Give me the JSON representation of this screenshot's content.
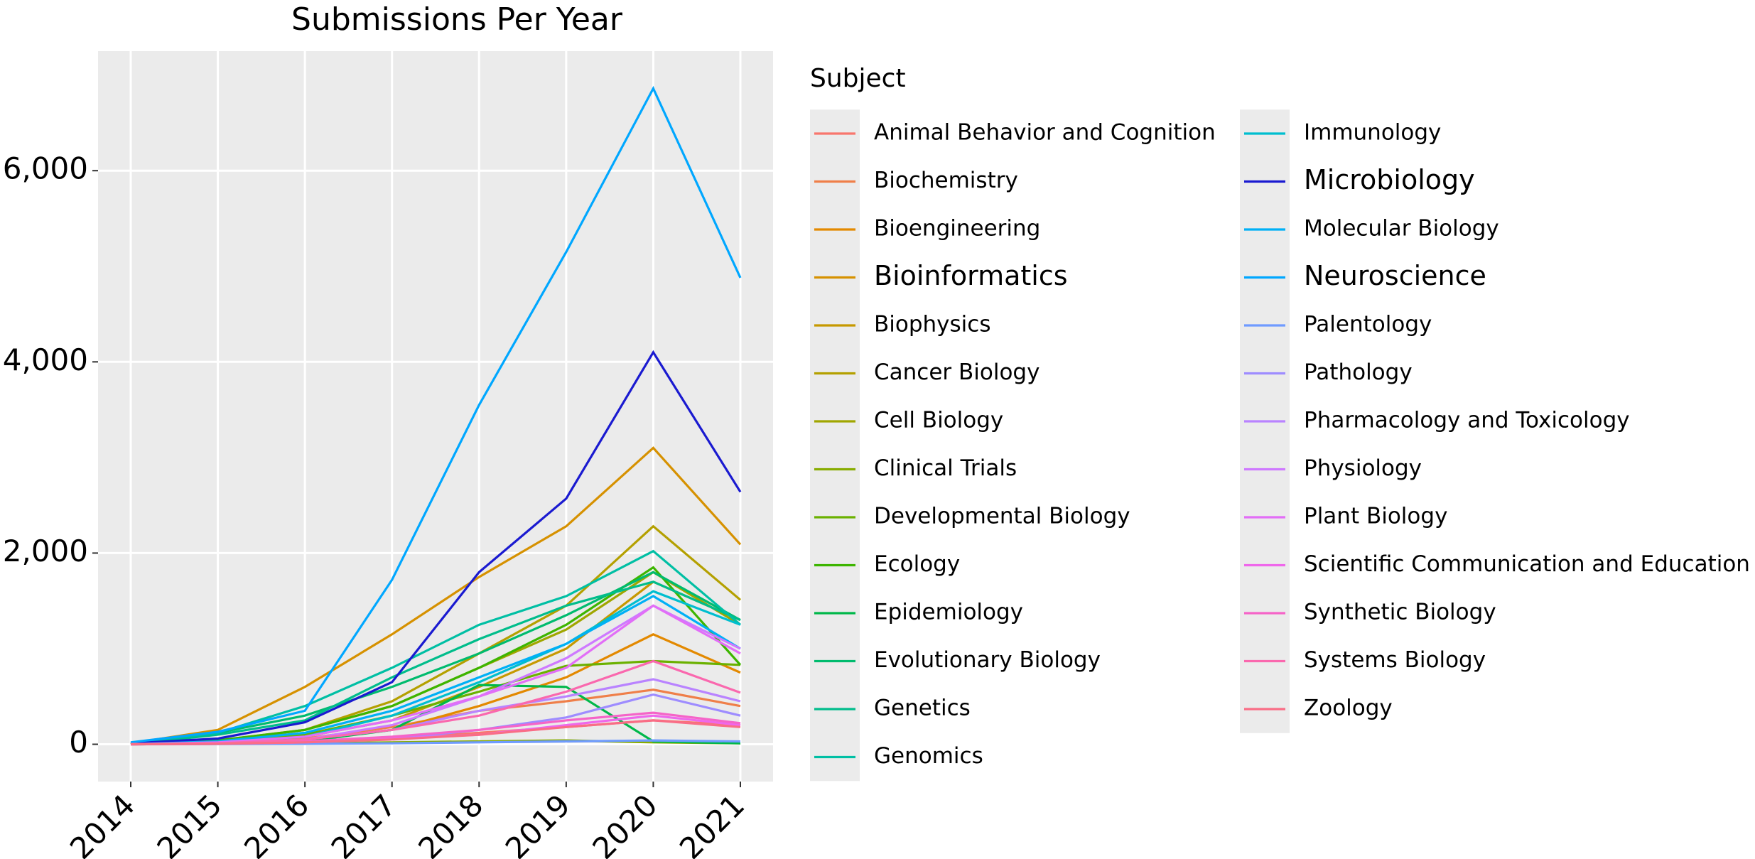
{
  "chart_data": {
    "type": "line",
    "title": "Submissions Per Year",
    "legend_title": "Subject",
    "categories": [
      "2014",
      "2015",
      "2016",
      "2017",
      "2018",
      "2019",
      "2020",
      "2021"
    ],
    "ylim": [
      -390,
      7250
    ],
    "yticks": [
      0,
      {
        "value": 2000,
        "label": "2,000"
      },
      {
        "value": 4000,
        "label": "4,000"
      },
      {
        "value": 6000,
        "label": "6,000"
      }
    ],
    "grid": true,
    "legend_position": "right",
    "series": [
      {
        "name": "Animal Behavior and Cognition",
        "color": "#F8766D",
        "values": [
          0,
          10,
          30,
          60,
          120,
          180,
          250,
          200
        ]
      },
      {
        "name": "Biochemistry",
        "color": "#EF7F49",
        "values": [
          0,
          20,
          60,
          180,
          350,
          450,
          570,
          400
        ]
      },
      {
        "name": "Bioengineering",
        "color": "#E38900",
        "values": [
          0,
          15,
          50,
          150,
          400,
          700,
          1150,
          750
        ]
      },
      {
        "name": "Bioinformatics",
        "color": "#D69100",
        "highlight": true,
        "values": [
          10,
          150,
          600,
          1150,
          1750,
          2280,
          3100,
          2090
        ]
      },
      {
        "name": "Biophysics",
        "color": "#C69900",
        "values": [
          0,
          20,
          80,
          250,
          600,
          1000,
          1700,
          1300
        ]
      },
      {
        "name": "Cancer Biology",
        "color": "#B4A000",
        "values": [
          5,
          40,
          150,
          450,
          950,
          1450,
          2280,
          1510
        ]
      },
      {
        "name": "Cell Biology",
        "color": "#A0A600",
        "values": [
          0,
          30,
          150,
          400,
          800,
          1200,
          1800,
          1250
        ]
      },
      {
        "name": "Clinical Trials",
        "color": "#88AC00",
        "values": [
          0,
          5,
          10,
          20,
          30,
          40,
          20,
          10
        ]
      },
      {
        "name": "Developmental Biology",
        "color": "#6BB100",
        "values": [
          0,
          20,
          100,
          300,
          550,
          820,
          870,
          830
        ]
      },
      {
        "name": "Ecology",
        "color": "#3DB500",
        "values": [
          0,
          40,
          150,
          400,
          800,
          1250,
          1850,
          830
        ]
      },
      {
        "name": "Epidemiology",
        "color": "#00B84A",
        "values": [
          0,
          5,
          30,
          150,
          620,
          600,
          30,
          10
        ]
      },
      {
        "name": "Evolutionary Biology",
        "color": "#00BB6E",
        "values": [
          0,
          120,
          300,
          600,
          950,
          1350,
          1800,
          1300
        ]
      },
      {
        "name": "Genetics",
        "color": "#00BD8B",
        "values": [
          0,
          100,
          250,
          700,
          1100,
          1450,
          1700,
          1300
        ]
      },
      {
        "name": "Genomics",
        "color": "#00BFA4",
        "values": [
          10,
          120,
          400,
          800,
          1250,
          1550,
          2020,
          1250
        ]
      },
      {
        "name": "Immunology",
        "color": "#00BECF",
        "values": [
          0,
          20,
          80,
          300,
          650,
          1050,
          1600,
          1250
        ]
      },
      {
        "name": "Microbiology",
        "color": "#1A1AD0",
        "highlight": true,
        "values": [
          10,
          60,
          230,
          650,
          1800,
          2570,
          4100,
          2640
        ]
      },
      {
        "name": "Molecular Biology",
        "color": "#00B0F6",
        "values": [
          0,
          30,
          120,
          350,
          700,
          1050,
          1550,
          1000
        ]
      },
      {
        "name": "Neuroscience",
        "color": "#00A7FF",
        "highlight": true,
        "values": [
          20,
          130,
          350,
          1720,
          3550,
          5150,
          6860,
          4880
        ]
      },
      {
        "name": "Palentology",
        "color": "#6F9BFF",
        "values": [
          0,
          2,
          5,
          10,
          20,
          30,
          40,
          30
        ]
      },
      {
        "name": "Pathology",
        "color": "#9E8CFF",
        "values": [
          0,
          5,
          20,
          60,
          150,
          280,
          520,
          300
        ]
      },
      {
        "name": "Pharmacology and Toxicology",
        "color": "#B983FF",
        "values": [
          0,
          10,
          50,
          150,
          350,
          500,
          680,
          450
        ]
      },
      {
        "name": "Physiology",
        "color": "#CE79FF",
        "values": [
          0,
          10,
          50,
          200,
          500,
          900,
          1450,
          1000
        ]
      },
      {
        "name": "Plant Biology",
        "color": "#E26EF7",
        "values": [
          0,
          20,
          80,
          250,
          500,
          800,
          1450,
          950
        ]
      },
      {
        "name": "Scientific Communication and Education",
        "color": "#EF67EB",
        "values": [
          0,
          5,
          20,
          60,
          100,
          200,
          300,
          200
        ]
      },
      {
        "name": "Synthetic Biology",
        "color": "#F564C8",
        "values": [
          0,
          5,
          30,
          80,
          150,
          250,
          330,
          220
        ]
      },
      {
        "name": "Systems Biology",
        "color": "#FA68AE",
        "values": [
          0,
          10,
          50,
          150,
          300,
          550,
          870,
          540
        ]
      },
      {
        "name": "Zoology",
        "color": "#F96D86",
        "values": [
          0,
          5,
          20,
          50,
          100,
          180,
          250,
          180
        ]
      }
    ]
  }
}
